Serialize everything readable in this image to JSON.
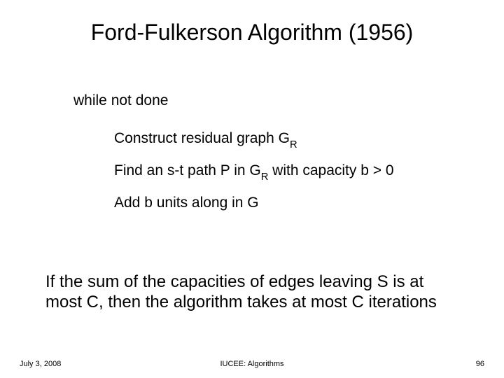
{
  "title": "Ford-Fulkerson Algorithm (1956)",
  "algo": {
    "while_line": "while not done",
    "step1_a": "Construct residual graph G",
    "step1_sub": "R",
    "step2_a": "Find an s-t path P in G",
    "step2_sub": "R",
    "step2_b": " with capacity b > 0",
    "step3": "Add b units along in G"
  },
  "summary": "If the sum of the capacities of edges leaving S is at most C, then the algorithm takes at most C iterations",
  "footer": {
    "date": "July 3, 2008",
    "center": "IUCEE:  Algorithms",
    "page": "96"
  },
  "style": {
    "background_color": "#ffffff",
    "title_fontsize": 32,
    "body_fontsize": 21,
    "summary_fontsize": 24,
    "footer_fontsize": 11,
    "text_color": "#000000",
    "font_family": "Arial"
  }
}
